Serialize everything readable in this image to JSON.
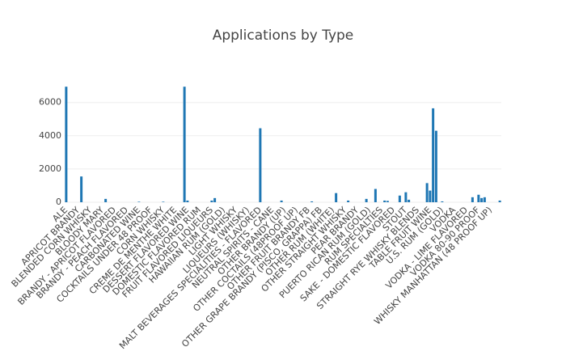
{
  "chart_data": {
    "type": "bar",
    "title": "Applications by Type",
    "categories": [
      "ALE",
      null,
      null,
      null,
      "APRICOT BRANDY",
      null,
      null,
      null,
      "BLENDED CORN WHISKY",
      null,
      null,
      null,
      "BLOODY MARY",
      null,
      null,
      null,
      "BRANDY - APRICOT FLAVORED",
      null,
      null,
      null,
      "BRANDY - PEACH FLAVORED",
      null,
      null,
      null,
      "CARBONATED WINE",
      null,
      null,
      null,
      "COCKTAILS UNDER 48 PROOF",
      null,
      null,
      null,
      "CORN WHISKY",
      null,
      null,
      null,
      "CREME DE MENTHE WHITE",
      null,
      null,
      null,
      "DESSERT FLAVORED WINE",
      null,
      null,
      null,
      "DOMESTIC FLAVORED RUM",
      null,
      null,
      null,
      "FRUIT FLAVORED LIQUEURS",
      null,
      null,
      null,
      "HAWAIIAN RUM (GOLD)",
      null,
      null,
      null,
      "LIGHT WHISKY",
      null,
      null,
      null,
      "LIQUEURS (WHISKY)",
      null,
      null,
      null,
      "MALT BEVERAGES SPECIALITIES - FLAVORED",
      null,
      null,
      null,
      "NEUTRAL SPIRITS - CANE",
      null,
      null,
      null,
      "OTHER BRANDY (UP)",
      null,
      null,
      null,
      "OTHER COCTAILS (48PROOF UP)",
      null,
      null,
      null,
      "OTHER FRUIT BRANDY FB",
      null,
      null,
      null,
      "OTHER GRAPE BRANDY (PISCO, GRAPPA) FB",
      null,
      null,
      null,
      "OTHER RUM (WHITE)",
      null,
      null,
      null,
      "OTHER STRAIGHT WHISKY",
      null,
      null,
      null,
      "PEAR BRANDY",
      null,
      null,
      null,
      "PUERTO RICAN RUM (GOLD)",
      null,
      null,
      null,
      "RUM SPECIALTIES",
      null,
      null,
      null,
      "SAKE - DOMESTIC FLAVORED",
      null,
      null,
      null,
      "STOUT",
      null,
      null,
      null,
      "STRAIGHT RYE WHISKY BLENDS",
      null,
      null,
      null,
      "TABLE FRUIT WINE",
      null,
      null,
      null,
      "U.S. RUM (GOLD)",
      null,
      null,
      null,
      "VODKA",
      null,
      null,
      null,
      "VODKA - LIME FLAVORED",
      null,
      null,
      null,
      "VODKA 80-90 PROOF",
      null,
      null,
      null,
      "WHISKY MANHATTAN (48 PROOF UP)",
      null,
      null,
      null
    ],
    "values": [
      6950,
      0,
      0,
      0,
      0,
      1550,
      0,
      0,
      0,
      0,
      0,
      0,
      0,
      200,
      0,
      0,
      0,
      0,
      0,
      0,
      0,
      0,
      0,
      0,
      30,
      0,
      0,
      0,
      0,
      0,
      0,
      0,
      30,
      0,
      0,
      0,
      0,
      0,
      0,
      6950,
      100,
      0,
      0,
      0,
      0,
      0,
      0,
      0,
      100,
      250,
      0,
      0,
      0,
      0,
      0,
      0,
      0,
      0,
      0,
      0,
      0,
      0,
      0,
      0,
      4450,
      0,
      0,
      0,
      0,
      0,
      0,
      100,
      0,
      0,
      0,
      0,
      0,
      0,
      0,
      0,
      0,
      50,
      0,
      0,
      0,
      0,
      0,
      0,
      0,
      550,
      0,
      0,
      0,
      100,
      0,
      0,
      0,
      0,
      0,
      200,
      0,
      0,
      800,
      0,
      0,
      100,
      80,
      0,
      0,
      0,
      400,
      0,
      600,
      150,
      0,
      0,
      0,
      0,
      0,
      1150,
      700,
      5650,
      4300,
      0,
      50,
      0,
      0,
      0,
      0,
      0,
      0,
      0,
      0,
      0,
      300,
      0,
      450,
      250,
      300,
      0,
      0,
      0,
      0,
      100
    ],
    "color": "#1f77b4",
    "ylim": [
      0,
      7300
    ],
    "yticks": [
      0,
      2000,
      4000,
      6000
    ],
    "grid": true
  }
}
